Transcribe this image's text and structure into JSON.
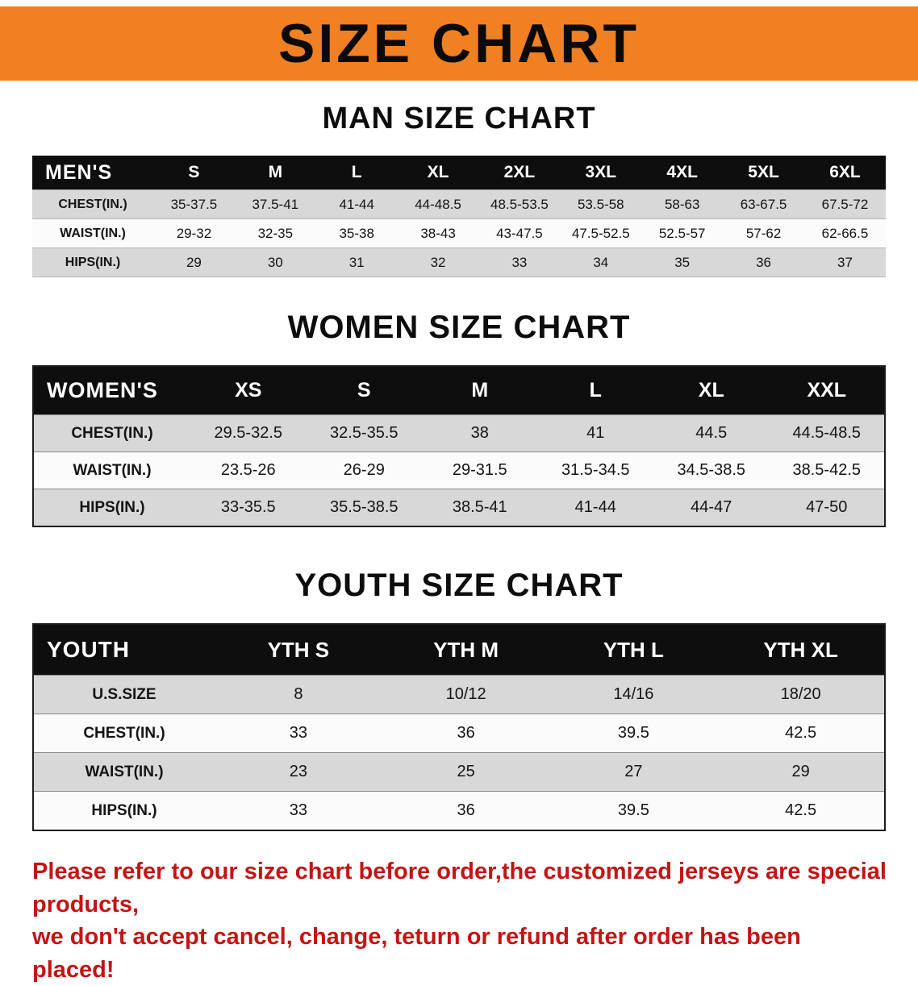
{
  "page": {
    "banner_title": "SIZE CHART",
    "note_line1": "Please refer to our size chart before order,the customized jerseys are special products,",
    "note_line2": "we don't accept cancel, change, teturn or refund after order has been placed!"
  },
  "colors": {
    "banner_bg": "#f08021",
    "table_header_bg": "#0e0e0e",
    "row_stripe_gray": "#d8d8d8",
    "note_red": "#c41414"
  },
  "men": {
    "title": "MAN SIZE CHART",
    "header": [
      "MEN'S",
      "S",
      "M",
      "L",
      "XL",
      "2XL",
      "3XL",
      "4XL",
      "5XL",
      "6XL"
    ],
    "rows": [
      [
        "CHEST(IN.)",
        "35-37.5",
        "37.5-41",
        "41-44",
        "44-48.5",
        "48.5-53.5",
        "53.5-58",
        "58-63",
        "63-67.5",
        "67.5-72"
      ],
      [
        "WAIST(IN.)",
        "29-32",
        "32-35",
        "35-38",
        "38-43",
        "43-47.5",
        "47.5-52.5",
        "52.5-57",
        "57-62",
        "62-66.5"
      ],
      [
        "HIPS(IN.)",
        "29",
        "30",
        "31",
        "32",
        "33",
        "34",
        "35",
        "36",
        "37"
      ]
    ]
  },
  "women": {
    "title": "WOMEN SIZE CHART",
    "header": [
      "WOMEN'S",
      "XS",
      "S",
      "M",
      "L",
      "XL",
      "XXL"
    ],
    "rows": [
      [
        "CHEST(IN.)",
        "29.5-32.5",
        "32.5-35.5",
        "38",
        "41",
        "44.5",
        "44.5-48.5"
      ],
      [
        "WAIST(IN.)",
        "23.5-26",
        "26-29",
        "29-31.5",
        "31.5-34.5",
        "34.5-38.5",
        "38.5-42.5"
      ],
      [
        "HIPS(IN.)",
        "33-35.5",
        "35.5-38.5",
        "38.5-41",
        "41-44",
        "44-47",
        "47-50"
      ]
    ]
  },
  "youth": {
    "title": "YOUTH SIZE CHART",
    "header": [
      "YOUTH",
      "YTH S",
      "YTH M",
      "YTH L",
      "YTH XL"
    ],
    "rows": [
      [
        "U.S.SIZE",
        "8",
        "10/12",
        "14/16",
        "18/20"
      ],
      [
        "CHEST(IN.)",
        "33",
        "36",
        "39.5",
        "42.5"
      ],
      [
        "WAIST(IN.)",
        "23",
        "25",
        "27",
        "29"
      ],
      [
        "HIPS(IN.)",
        "33",
        "36",
        "39.5",
        "42.5"
      ]
    ]
  }
}
